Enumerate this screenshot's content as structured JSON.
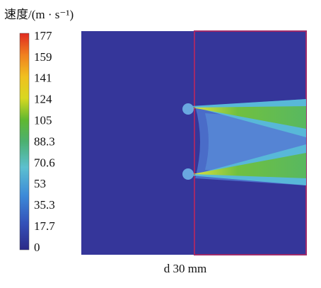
{
  "legend": {
    "title": "速度/(m · s⁻¹)",
    "labels": [
      "177",
      "159",
      "141",
      "124",
      "105",
      "88.3",
      "70.6",
      "53",
      "35.3",
      "17.7",
      "0"
    ]
  },
  "caption": "d 30 mm"
}
